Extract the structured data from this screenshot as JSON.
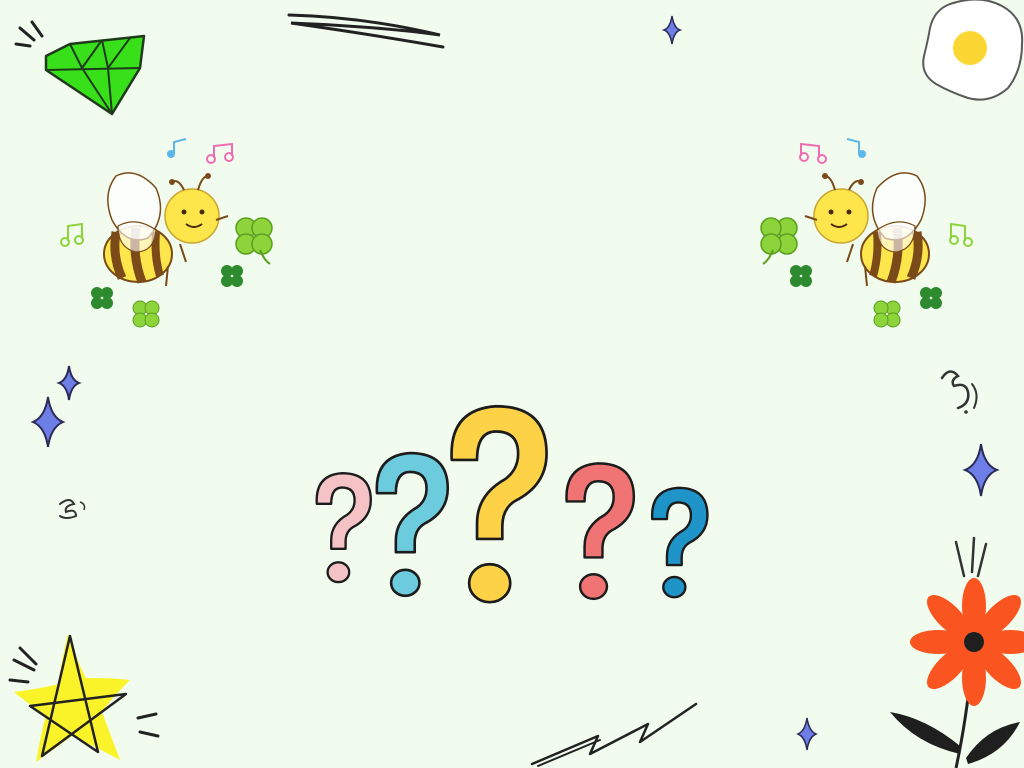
{
  "slide": {
    "background": "#f1fcef",
    "question_marks": [
      {
        "name": "question-mark-pink",
        "color": "#f5c3c6"
      },
      {
        "name": "question-mark-teal",
        "color": "#6ccbdc"
      },
      {
        "name": "question-mark-yellow",
        "color": "#fed246"
      },
      {
        "name": "question-mark-coral",
        "color": "#f07474"
      },
      {
        "name": "question-mark-blue",
        "color": "#1f94c9"
      }
    ],
    "decorations": {
      "gem": "gem-icon",
      "egg": "fried-egg-icon",
      "bee_left": "bee-icon",
      "bee_right": "bee-icon",
      "star": "star-icon",
      "flower": "flower-icon",
      "sparkles": "sparkle-icon",
      "clovers": "clover-icon",
      "music": "music-note-icon"
    },
    "colors": {
      "gem": "#38e01a",
      "egg_yolk": "#fcd734",
      "star": "#fbf32a",
      "flower": "#fa5520",
      "sparkle": "#6d7fe6",
      "bee_yellow": "#fde54c",
      "bee_brown": "#7a4a18",
      "clover": "#8dd43a",
      "clover_dark": "#2e8a2e"
    }
  }
}
